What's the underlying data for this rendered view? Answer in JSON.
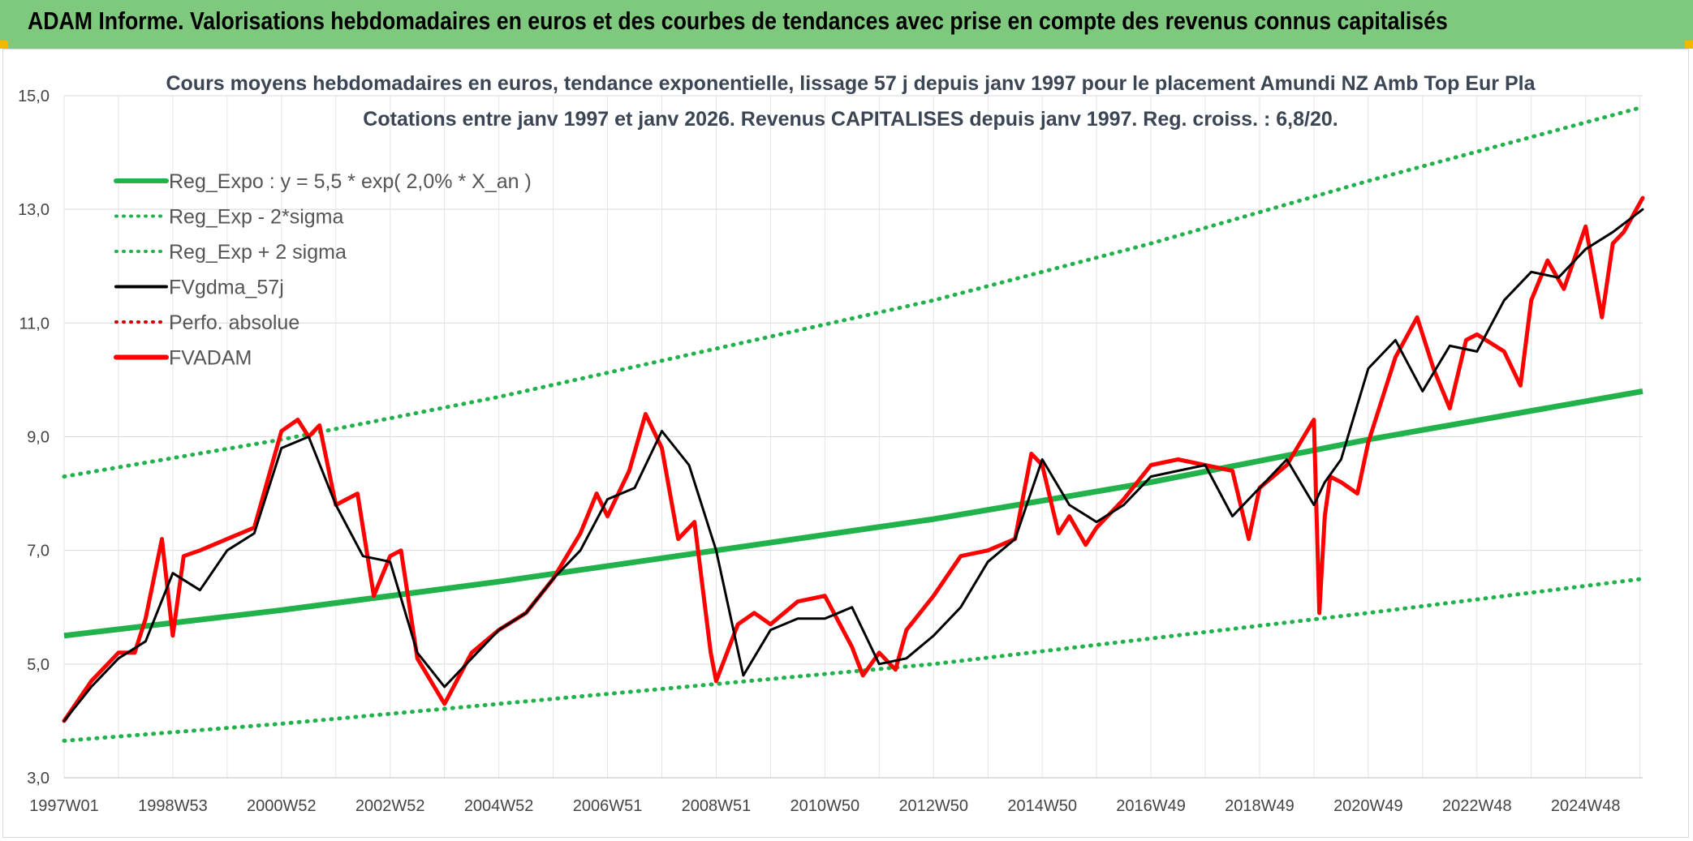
{
  "header": {
    "title": "ADAM Informe. Valorisations hebdomadaires en euros et des courbes de tendances avec prise en compte des revenus connus capitalisés"
  },
  "colors": {
    "banner": "#7fc97f",
    "trend": "#22b24c",
    "sigma": "#22b24c",
    "moving_average": "#000000",
    "absolute": "#d40000",
    "price": "#ff0000"
  },
  "chart_data": {
    "type": "line",
    "title": "Cours moyens hebdomadaires en euros, tendance exponentielle, lissage 57 j depuis janv 1997 pour le placement Amundi NZ Amb Top Eur Pla",
    "subtitle": "Cotations entre janv 1997 et janv 2026. Revenus CAPITALISES depuis janv 1997. Reg. croiss. : 6,8/20.",
    "xlabel": "",
    "ylabel": "",
    "ylim": [
      3.0,
      15.0
    ],
    "y_ticks": [
      "3,0",
      "5,0",
      "7,0",
      "9,0",
      "11,0",
      "13,0",
      "15,0"
    ],
    "x_range": [
      1997.0,
      2026.05
    ],
    "x_ticks": [
      {
        "label": "1997W01",
        "year": 1997.0
      },
      {
        "label": "1998W53",
        "year": 1999.0
      },
      {
        "label": "2000W52",
        "year": 2001.0
      },
      {
        "label": "2002W52",
        "year": 2003.0
      },
      {
        "label": "2004W52",
        "year": 2005.0
      },
      {
        "label": "2006W51",
        "year": 2007.0
      },
      {
        "label": "2008W51",
        "year": 2009.0
      },
      {
        "label": "2010W50",
        "year": 2011.0
      },
      {
        "label": "2012W50",
        "year": 2013.0
      },
      {
        "label": "2014W50",
        "year": 2015.0
      },
      {
        "label": "2016W49",
        "year": 2017.0
      },
      {
        "label": "2018W49",
        "year": 2019.0
      },
      {
        "label": "2020W49",
        "year": 2021.0
      },
      {
        "label": "2022W48",
        "year": 2023.0
      },
      {
        "label": "2024W48",
        "year": 2025.0
      }
    ],
    "grid": true,
    "legend_position": "top-left",
    "legend": [
      {
        "label": "Reg_Expo : y = 5,5 * exp( 2,0% *  X_an )",
        "style": "solid-thick",
        "color": "#22b24c"
      },
      {
        "label": "Reg_Exp - 2*sigma",
        "style": "dotted",
        "color": "#22b24c"
      },
      {
        "label": "Reg_Exp + 2 sigma",
        "style": "dotted",
        "color": "#22b24c"
      },
      {
        "label": "FVgdma_57j",
        "style": "solid",
        "color": "#000000"
      },
      {
        "label": "Perfo. absolue",
        "style": "dotted",
        "color": "#d40000"
      },
      {
        "label": "FVADAM",
        "style": "solid-thick",
        "color": "#ff0000"
      }
    ],
    "series": [
      {
        "name": "Reg_Expo : y = 5,5 * exp( 2,0% *  X_an )",
        "x": [
          1997.0,
          2001.0,
          2005.0,
          2009.0,
          2013.0,
          2017.0,
          2021.0,
          2026.05
        ],
        "values": [
          5.5,
          5.95,
          6.45,
          7.0,
          7.55,
          8.2,
          8.95,
          9.8
        ]
      },
      {
        "name": "Reg_Exp - 2*sigma",
        "x": [
          1997.0,
          2001.0,
          2005.0,
          2009.0,
          2013.0,
          2017.0,
          2021.0,
          2026.05
        ],
        "values": [
          3.65,
          3.95,
          4.3,
          4.65,
          5.0,
          5.45,
          5.9,
          6.5
        ]
      },
      {
        "name": "Reg_Exp + 2 sigma",
        "x": [
          1997.0,
          2001.0,
          2005.0,
          2009.0,
          2013.0,
          2017.0,
          2021.0,
          2026.05
        ],
        "values": [
          8.3,
          8.95,
          9.7,
          10.55,
          11.4,
          12.4,
          13.5,
          14.8
        ]
      },
      {
        "name": "FVgdma_57j",
        "x": [
          1997.0,
          1997.5,
          1998.0,
          1998.5,
          1999.0,
          1999.5,
          2000.0,
          2000.5,
          2001.0,
          2001.5,
          2002.0,
          2002.5,
          2003.0,
          2003.5,
          2004.0,
          2004.5,
          2005.0,
          2005.5,
          2006.0,
          2006.5,
          2007.0,
          2007.5,
          2008.0,
          2008.5,
          2009.0,
          2009.5,
          2010.0,
          2010.5,
          2011.0,
          2011.5,
          2012.0,
          2012.5,
          2013.0,
          2013.5,
          2014.0,
          2014.5,
          2015.0,
          2015.5,
          2016.0,
          2016.5,
          2017.0,
          2017.5,
          2018.0,
          2018.5,
          2019.0,
          2019.5,
          2020.0,
          2020.2,
          2020.5,
          2021.0,
          2021.5,
          2022.0,
          2022.5,
          2023.0,
          2023.5,
          2024.0,
          2024.5,
          2025.0,
          2025.5,
          2026.05
        ],
        "values": [
          4.0,
          4.6,
          5.1,
          5.4,
          6.6,
          6.3,
          7.0,
          7.3,
          8.8,
          9.0,
          7.8,
          6.9,
          6.8,
          5.2,
          4.6,
          5.1,
          5.6,
          5.9,
          6.5,
          7.0,
          7.9,
          8.1,
          9.1,
          8.5,
          7.0,
          4.8,
          5.6,
          5.8,
          5.8,
          6.0,
          5.0,
          5.1,
          5.5,
          6.0,
          6.8,
          7.2,
          8.6,
          7.8,
          7.5,
          7.8,
          8.3,
          8.4,
          8.5,
          7.6,
          8.1,
          8.6,
          7.8,
          8.2,
          8.6,
          10.2,
          10.7,
          9.8,
          10.6,
          10.5,
          11.4,
          11.9,
          11.8,
          12.3,
          12.6,
          13.0
        ]
      },
      {
        "name": "FVADAM",
        "x": [
          1997.0,
          1997.5,
          1998.0,
          1998.3,
          1998.5,
          1998.8,
          1999.0,
          1999.2,
          1999.5,
          2000.0,
          2000.5,
          2001.0,
          2001.3,
          2001.5,
          2001.7,
          2002.0,
          2002.4,
          2002.7,
          2003.0,
          2003.2,
          2003.5,
          2004.0,
          2004.5,
          2005.0,
          2005.5,
          2006.0,
          2006.5,
          2006.8,
          2007.0,
          2007.4,
          2007.7,
          2008.0,
          2008.3,
          2008.6,
          2008.9,
          2009.0,
          2009.4,
          2009.7,
          2010.0,
          2010.5,
          2011.0,
          2011.5,
          2011.7,
          2012.0,
          2012.3,
          2012.5,
          2013.0,
          2013.5,
          2014.0,
          2014.5,
          2014.8,
          2015.0,
          2015.3,
          2015.5,
          2015.8,
          2016.0,
          2016.5,
          2017.0,
          2017.5,
          2018.0,
          2018.5,
          2018.8,
          2019.0,
          2019.5,
          2020.0,
          2020.1,
          2020.2,
          2020.3,
          2020.5,
          2020.8,
          2021.0,
          2021.5,
          2021.9,
          2022.2,
          2022.5,
          2022.8,
          2023.0,
          2023.5,
          2023.8,
          2024.0,
          2024.3,
          2024.6,
          2025.0,
          2025.3,
          2025.5,
          2025.7,
          2026.05
        ],
        "values": [
          4.0,
          4.7,
          5.2,
          5.2,
          5.8,
          7.2,
          5.5,
          6.9,
          7.0,
          7.2,
          7.4,
          9.1,
          9.3,
          9.0,
          9.2,
          7.8,
          8.0,
          6.2,
          6.9,
          7.0,
          5.1,
          4.3,
          5.2,
          5.6,
          5.9,
          6.5,
          7.3,
          8.0,
          7.6,
          8.4,
          9.4,
          8.8,
          7.2,
          7.5,
          5.2,
          4.7,
          5.7,
          5.9,
          5.7,
          6.1,
          6.2,
          5.3,
          4.8,
          5.2,
          4.9,
          5.6,
          6.2,
          6.9,
          7.0,
          7.2,
          8.7,
          8.5,
          7.3,
          7.6,
          7.1,
          7.4,
          7.9,
          8.5,
          8.6,
          8.5,
          8.4,
          7.2,
          8.1,
          8.5,
          9.3,
          5.9,
          7.6,
          8.3,
          8.2,
          8.0,
          8.9,
          10.4,
          11.1,
          10.2,
          9.5,
          10.7,
          10.8,
          10.5,
          9.9,
          11.4,
          12.1,
          11.6,
          12.7,
          11.1,
          12.4,
          12.6,
          13.2
        ]
      }
    ]
  }
}
